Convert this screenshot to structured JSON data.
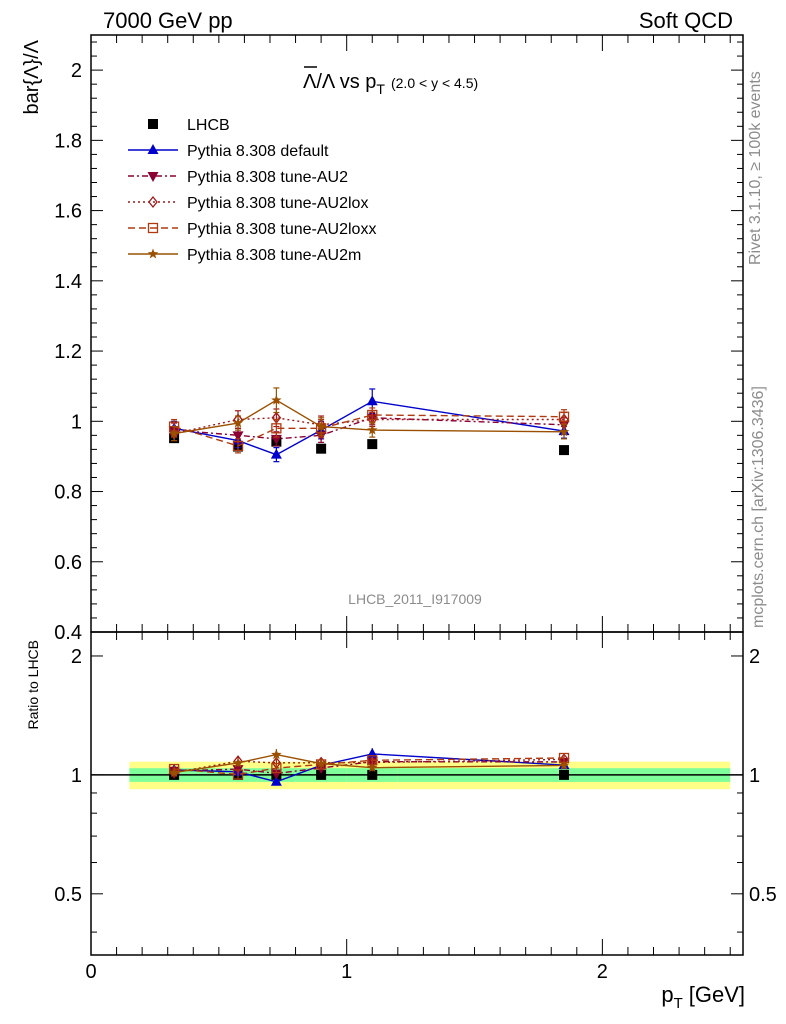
{
  "header": {
    "left": "7000 GeV pp",
    "right": "Soft QCD"
  },
  "side_text": {
    "rivet": "Rivet 3.1.10, ≥ 100k events",
    "mcplots": "mcplots.cern.ch [arXiv:1306.3436]"
  },
  "watermark": "LHCB_2011_I917009",
  "chart_data": {
    "type": "scatter",
    "title_main": "Λ/Λ vs p",
    "title_sub": "T",
    "title_range": "(2.0 < y < 4.5)",
    "ylabel": "bar{Λ}/Λ",
    "xlabel": "p",
    "xlabel_sub": "T",
    "xlabel_unit": "[GeV]",
    "ratio_ylabel": "Ratio to LHCB",
    "xlim": [
      0,
      2.55
    ],
    "ylim": [
      0.4,
      2.1
    ],
    "ratio_ylim": [
      0.35,
      2.3
    ],
    "x_ticks": [
      "0",
      "1",
      "2"
    ],
    "y_ticks": [
      "0.4",
      "0.6",
      "0.8",
      "1",
      "1.2",
      "1.4",
      "1.6",
      "1.8",
      "2"
    ],
    "ratio_ticks": [
      "0.5",
      "1",
      "2"
    ],
    "x": [
      0.325,
      0.575,
      0.725,
      0.9,
      1.1,
      1.85
    ],
    "band_edges": [
      0.15,
      0.45,
      0.65,
      0.8,
      1.0,
      1.2,
      2.5
    ],
    "ratio_band_inner": [
      0.04,
      0.04,
      0.04,
      0.04,
      0.04,
      0.04
    ],
    "ratio_band_outer": [
      0.08,
      0.08,
      0.08,
      0.08,
      0.08,
      0.08
    ],
    "series": [
      {
        "name": "LHCB",
        "values": [
          0.952,
          0.928,
          0.942,
          0.922,
          0.935,
          0.918
        ],
        "errors": [
          0.008,
          0.008,
          0.008,
          0.008,
          0.008,
          0.008
        ],
        "color": "#000000",
        "marker": "square-filled",
        "line": "none"
      },
      {
        "name": "Pythia 8.308 default",
        "values": [
          0.98,
          0.945,
          0.905,
          0.975,
          1.057,
          0.972
        ],
        "errors": [
          0.02,
          0.02,
          0.02,
          0.025,
          0.035,
          0.02
        ],
        "color": "#0000cc",
        "marker": "triangle-up",
        "line": "solid"
      },
      {
        "name": "Pythia 8.308 tune-AU2",
        "values": [
          0.975,
          0.96,
          0.95,
          0.96,
          1.01,
          0.99
        ],
        "errors": [
          0.02,
          0.02,
          0.02,
          0.02,
          0.02,
          0.02
        ],
        "color": "#8b0033",
        "marker": "triangle-down",
        "line": "dash-dot"
      },
      {
        "name": "Pythia 8.308 tune-AU2lox",
        "values": [
          0.965,
          1.005,
          1.01,
          0.99,
          1.005,
          1.005
        ],
        "errors": [
          0.02,
          0.025,
          0.025,
          0.025,
          0.02,
          0.02
        ],
        "color": "#a01818",
        "marker": "diamond-open",
        "line": "dotted"
      },
      {
        "name": "Pythia 8.308 tune-AU2loxx",
        "values": [
          0.985,
          0.93,
          0.98,
          0.98,
          1.018,
          1.013
        ],
        "errors": [
          0.02,
          0.02,
          0.025,
          0.025,
          0.02,
          0.02
        ],
        "color": "#b03a10",
        "marker": "square-open",
        "line": "dashed"
      },
      {
        "name": "Pythia 8.308 tune-AU2m",
        "values": [
          0.965,
          0.995,
          1.06,
          0.985,
          0.975,
          0.97
        ],
        "errors": [
          0.02,
          0.02,
          0.035,
          0.025,
          0.02,
          0.02
        ],
        "color": "#9a5000",
        "marker": "star",
        "line": "solid"
      }
    ],
    "band_colors": {
      "inner": "#7fff99",
      "outer": "#ffff88"
    }
  }
}
